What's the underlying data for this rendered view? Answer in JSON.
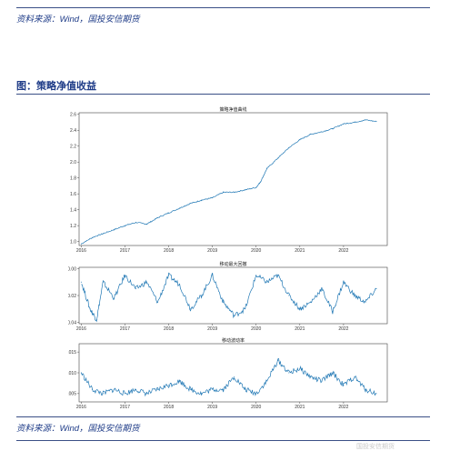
{
  "header": {
    "source_top": "资料来源：Wind，国投安信期货",
    "figure_title": "图：策略净值收益",
    "source_bottom": "资料来源：Wind，国投安信期货"
  },
  "chart_data": [
    {
      "type": "line",
      "title": "策略净值曲线",
      "x_ticks": [
        "2016",
        "2017",
        "2018",
        "2019",
        "2020",
        "2021",
        "2022"
      ],
      "y_ticks": [
        "1.0",
        "1.2",
        "1.4",
        "1.6",
        "1.8",
        "2.0",
        "2.2",
        "2.4",
        "2.6"
      ],
      "ylim": [
        0.95,
        2.62
      ],
      "x": [
        2016.0,
        2016.25,
        2016.5,
        2016.75,
        2017.0,
        2017.25,
        2017.5,
        2017.75,
        2018.0,
        2018.25,
        2018.5,
        2018.75,
        2019.0,
        2019.25,
        2019.5,
        2019.75,
        2020.0,
        2020.1,
        2020.25,
        2020.5,
        2020.75,
        2021.0,
        2021.25,
        2021.5,
        2021.75,
        2022.0,
        2022.25,
        2022.5,
        2022.75
      ],
      "y": [
        0.97,
        1.05,
        1.1,
        1.15,
        1.2,
        1.24,
        1.22,
        1.3,
        1.36,
        1.42,
        1.48,
        1.52,
        1.55,
        1.62,
        1.62,
        1.65,
        1.68,
        1.75,
        1.92,
        2.05,
        2.18,
        2.28,
        2.35,
        2.38,
        2.42,
        2.48,
        2.5,
        2.53,
        2.51
      ],
      "xlim": [
        2015.95,
        2023.0
      ]
    },
    {
      "type": "area",
      "title": "移动最大回撤",
      "x_ticks": [
        "2016",
        "2017",
        "2018",
        "2019",
        "2020",
        "2021",
        "2022"
      ],
      "y_ticks": [
        "0.00",
        "-0.02",
        "-0.04"
      ],
      "ylim": [
        -0.041,
        0.001
      ],
      "x": [
        2016.0,
        2016.2,
        2016.35,
        2016.5,
        2016.75,
        2017.0,
        2017.25,
        2017.5,
        2017.75,
        2018.0,
        2018.25,
        2018.5,
        2018.75,
        2019.0,
        2019.25,
        2019.5,
        2019.75,
        2020.0,
        2020.25,
        2020.5,
        2020.75,
        2021.0,
        2021.25,
        2021.5,
        2021.75,
        2022.0,
        2022.25,
        2022.5,
        2022.75
      ],
      "y": [
        -0.01,
        -0.03,
        -0.038,
        -0.01,
        -0.022,
        -0.005,
        -0.015,
        -0.01,
        -0.025,
        -0.005,
        -0.012,
        -0.03,
        -0.02,
        -0.005,
        -0.025,
        -0.035,
        -0.03,
        -0.005,
        -0.01,
        -0.005,
        -0.02,
        -0.03,
        -0.025,
        -0.015,
        -0.032,
        -0.01,
        -0.02,
        -0.025,
        -0.015
      ],
      "xlim": [
        2015.95,
        2023.0
      ]
    },
    {
      "type": "line",
      "title": "移动波动率",
      "x_ticks": [
        "2016",
        "2017",
        "2018",
        "2019",
        "2020",
        "2021",
        "2022"
      ],
      "y_ticks": [
        "0.015",
        "0.010",
        "0.005"
      ],
      "ylim": [
        0.003,
        0.017
      ],
      "x": [
        2016.0,
        2016.25,
        2016.5,
        2016.75,
        2017.0,
        2017.25,
        2017.5,
        2017.75,
        2018.0,
        2018.25,
        2018.5,
        2018.75,
        2019.0,
        2019.25,
        2019.5,
        2019.75,
        2020.0,
        2020.25,
        2020.5,
        2020.75,
        2021.0,
        2021.25,
        2021.5,
        2021.75,
        2022.0,
        2022.25,
        2022.5,
        2022.75
      ],
      "y": [
        0.01,
        0.006,
        0.005,
        0.006,
        0.005,
        0.006,
        0.005,
        0.006,
        0.007,
        0.008,
        0.006,
        0.005,
        0.006,
        0.006,
        0.009,
        0.006,
        0.005,
        0.008,
        0.013,
        0.01,
        0.011,
        0.009,
        0.008,
        0.01,
        0.007,
        0.009,
        0.006,
        0.005
      ],
      "xlim": [
        2015.95,
        2023.0
      ]
    }
  ],
  "watermark": "国投安信期货"
}
